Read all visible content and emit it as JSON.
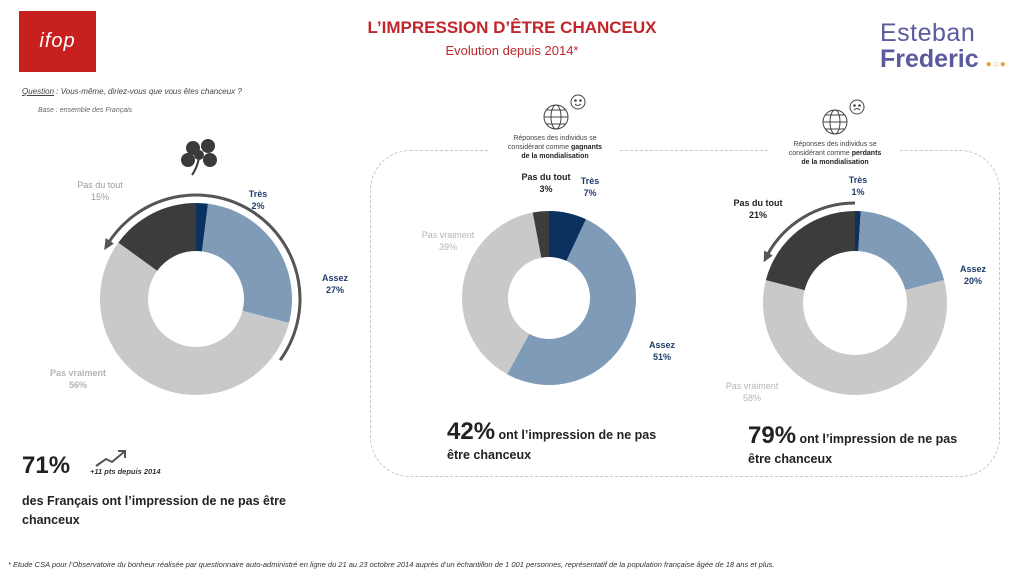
{
  "header": {
    "logo_text": "ifop",
    "title": "L’IMPRESSION D’ÊTRE CHANCEUX",
    "subtitle": "Evolution depuis 2014*",
    "brand_line1": "Esteban",
    "brand_line2": "Frederic"
  },
  "question": {
    "label": "Question",
    "text": " :  Vous-même, diriez-vous que vous êtes chanceux ?",
    "base": "Base : ensemble des Français"
  },
  "colors": {
    "tres": "#0b315e",
    "assez": "#7f9bb8",
    "pas_vraiment": "#c9c9c9",
    "pas_du_tout": "#3c3c3c",
    "title": "#c0272d",
    "label_dark": "#1f3c6b",
    "label_gray": "#b5b5b5"
  },
  "chart_data": [
    {
      "type": "pie",
      "title": "",
      "categories": [
        "Très",
        "Assez",
        "Pas vraiment",
        "Pas du tout"
      ],
      "values": [
        2,
        27,
        56,
        15
      ],
      "labels": [
        "2%",
        "27%",
        "56%",
        "15%"
      ],
      "summary": {
        "value": "71%",
        "delta": "+11 pts depuis 2014",
        "text": "des Français ont l’impression de ne pas être chanceux"
      }
    },
    {
      "type": "pie",
      "title": "",
      "note": [
        "Réponses des individus se",
        "considérant comme ",
        "gagnants",
        "de la mondialisation"
      ],
      "categories": [
        "Très",
        "Assez",
        "Pas vraiment",
        "Pas du tout"
      ],
      "values": [
        7,
        51,
        39,
        3
      ],
      "labels": [
        "7%",
        "51%",
        "39%",
        "3%"
      ],
      "summary": {
        "value": "42%",
        "text1": " ont l’impression de ne pas",
        "text2": "être chanceux"
      }
    },
    {
      "type": "pie",
      "title": "",
      "note": [
        "Réponses des individus se",
        "considérant comme ",
        "perdants",
        "de la mondialisation"
      ],
      "categories": [
        "Très",
        "Assez",
        "Pas vraiment",
        "Pas du tout"
      ],
      "values": [
        1,
        20,
        58,
        21
      ],
      "labels": [
        "1%",
        "20%",
        "58%",
        "21%"
      ],
      "summary": {
        "value": "79%",
        "text1": " ont l’impression de ne pas",
        "text2": "être chanceux"
      }
    }
  ],
  "footnote": "* Etude CSA pour l’Observatoire du bonheur réalisée par questionnaire auto-administré en ligne du 21 au 23 octobre 2014 auprès d’un échantillon de 1 001 personnes, représentatif de la population française âgée de 18 ans et plus."
}
